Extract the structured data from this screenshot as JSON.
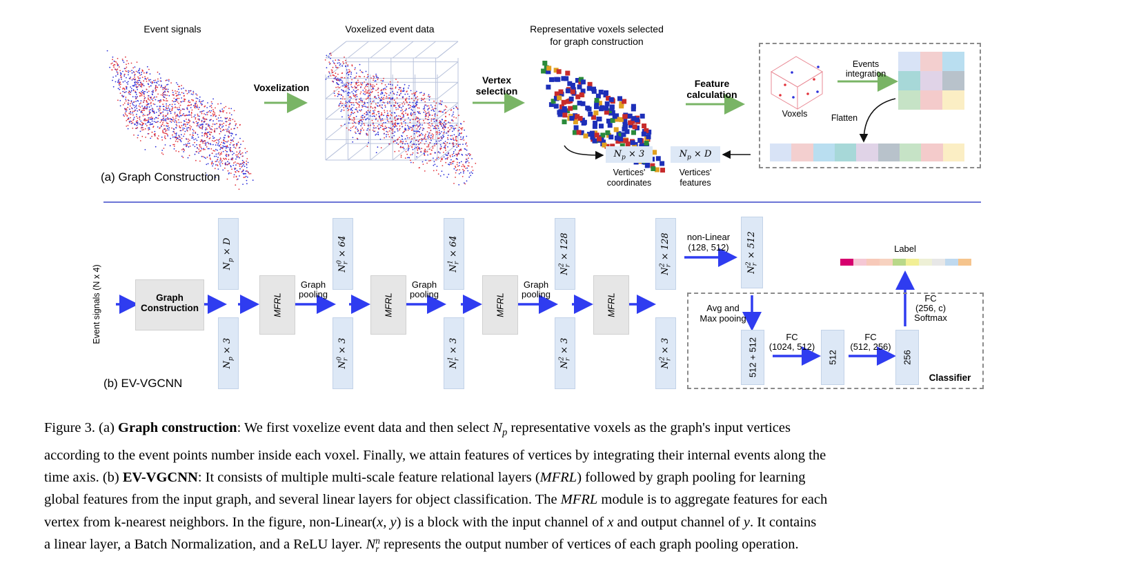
{
  "part_a": {
    "titles": {
      "event_signals": "Event signals",
      "voxelized_event_data": "Voxelized event data",
      "representative_voxels": "Representative voxels selected\nfor graph construction"
    },
    "arrows": {
      "voxelization": "Voxelization",
      "vertex_selection": "Vertex\nselection",
      "feature_calculation": "Feature\ncalculation"
    },
    "feature_panel": {
      "events_integration": "Events\nintegration",
      "voxels": "Voxels",
      "flatten": "Flatten",
      "grid_colors": [
        "#d8e3f6",
        "#f3cfcf",
        "#b9def0",
        "#a7d8d8",
        "#e0d3e7",
        "#b8c2cb",
        "#c6e3c6",
        "#f4cbcb",
        "#fbeec4"
      ],
      "strip_colors": [
        "#d8e3f6",
        "#f3cfcf",
        "#b9def0",
        "#a7d8d8",
        "#e0d3e7",
        "#b8c2cb",
        "#c6e3c6",
        "#f4cbcb",
        "#fbeec4"
      ]
    },
    "outputs": {
      "coords_formula": "Np × 3",
      "coords_label": "Vertices'\ncoordinates",
      "features_formula": "Np × D",
      "features_label": "Vertices'\nfeatures"
    },
    "section_label": "(a) Graph Construction"
  },
  "part_b": {
    "input_label": "Event signals (N x 4)",
    "graph_construction": "Graph\nConstruction",
    "mfrl": "MFRL",
    "graph_pooling": "Graph\npooling",
    "top_boxes": [
      "Np × D",
      "Nr0 × 64",
      "Nr1 × 64",
      "Nr2 × 128",
      "Nr2 × 128"
    ],
    "bottom_boxes": [
      "Np × 3",
      "Nr0 × 3",
      "Nr1 × 3",
      "Nr2 × 3",
      "Nr2 × 3"
    ],
    "non_linear": "non-Linear\n(128, 512)",
    "nl_out_box": "Nr2 × 512",
    "avg_max_pooling": "Avg and\nMax pooing",
    "classifier_boxes": [
      "512 + 512",
      "512",
      "256"
    ],
    "fc1": "FC\n(1024, 512)",
    "fc2": "FC\n(512, 256)",
    "fc3": "FC\n(256, c)\nSoftmax",
    "label": "Label",
    "label_colors": [
      "#d6006e",
      "#f5c7d4",
      "#f7c9b9",
      "#f7d2c0",
      "#b9d889",
      "#f2ef95",
      "#eef0d6",
      "#e7e7e7",
      "#bfd9ef",
      "#f5c48d"
    ],
    "classifier": "Classifier",
    "section_label": "(b) EV-VGCNN"
  },
  "caption": {
    "lines": [
      "Figure 3. (a) **Graph construction**: We first voxelize event data and then select $N_p$ representative voxels as the graph's input vertices",
      "according to the event points number inside each voxel. Finally, we attain features of vertices by integrating their internal events along the",
      "time axis. (b) **EV-VGCNN**: It consists of multiple multi-scale feature relational layers (*MFRL*) followed by graph pooling for learning",
      "global features from the input graph, and several linear layers for object classification. The *MFRL* module is to aggregate features for each",
      "vertex from k-nearest neighbors. In the figure, non-Linear$(x, y)$ is a block with the input channel of $x$ and output channel of $y$. It contains",
      "a linear layer, a Batch Normalization, and a ReLU layer. $N_r^n$ represents the output number of vertices of each graph pooling operation."
    ]
  },
  "colors": {
    "green_arrow": "#79b465",
    "blue_arrow": "#2f3cf0",
    "divider": "#6b74d6",
    "box_fill": "#dde8f6",
    "mfrl_fill": "#e6e6e6",
    "event_red": "#e2323a",
    "event_blue": "#2b2fd9"
  }
}
